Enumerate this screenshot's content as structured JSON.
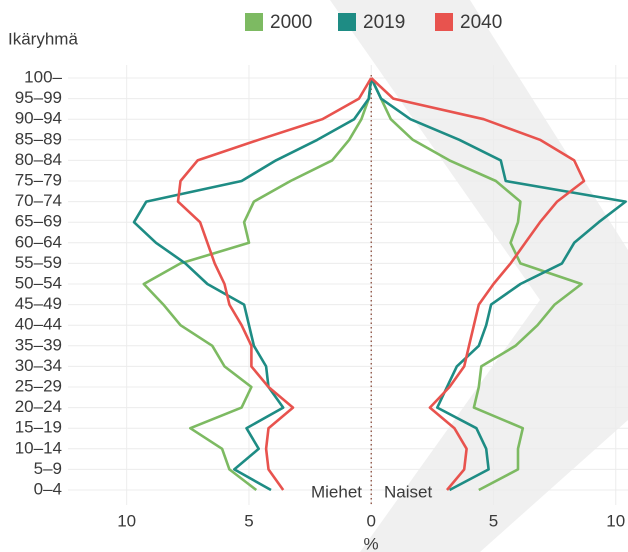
{
  "chart_data": {
    "type": "line",
    "y_axis_title": "Ikäryhmä",
    "x_axis_title": "%",
    "annotations": [
      "Miehet",
      "Naiset"
    ],
    "categories": [
      "0–4",
      "5–9",
      "10–14",
      "15–19",
      "20–24",
      "25–29",
      "30–34",
      "35–39",
      "40–44",
      "45–49",
      "50–54",
      "55–59",
      "60–64",
      "65–69",
      "70–74",
      "75–79",
      "80–84",
      "85–89",
      "90–94",
      "95–99",
      "100–"
    ],
    "series": [
      {
        "name": "2000",
        "color": "#7dba62",
        "men": [
          -4.7,
          -5.8,
          -6.1,
          -7.4,
          -5.3,
          -4.9,
          -6.0,
          -6.5,
          -7.8,
          -8.5,
          -9.3,
          -7.8,
          -5.0,
          -5.2,
          -4.8,
          -3.3,
          -1.6,
          -0.9,
          -0.4,
          -0.1,
          0
        ],
        "women": [
          4.4,
          6.0,
          6.0,
          6.2,
          4.2,
          4.4,
          4.5,
          5.9,
          6.8,
          7.5,
          8.6,
          6.1,
          5.7,
          6.0,
          6.1,
          5.1,
          3.2,
          1.7,
          0.8,
          0.4,
          0
        ]
      },
      {
        "name": "2019",
        "color": "#1e8c84",
        "men": [
          -4.1,
          -5.6,
          -4.6,
          -5.1,
          -3.6,
          -4.2,
          -4.3,
          -4.8,
          -5.0,
          -5.2,
          -6.7,
          -7.6,
          -8.8,
          -9.7,
          -9.2,
          -5.3,
          -3.9,
          -2.2,
          -0.7,
          -0.1,
          0
        ],
        "women": [
          3.2,
          4.8,
          4.7,
          4.3,
          2.7,
          3.1,
          3.5,
          4.4,
          4.7,
          4.9,
          6.1,
          7.8,
          8.3,
          9.3,
          10.4,
          5.5,
          5.3,
          3.6,
          1.6,
          0.4,
          0
        ]
      },
      {
        "name": "2040",
        "color": "#e8534e",
        "men": [
          -3.6,
          -4.2,
          -4.3,
          -4.2,
          -3.2,
          -4.2,
          -4.9,
          -4.9,
          -5.3,
          -5.8,
          -6.0,
          -6.4,
          -6.7,
          -7.0,
          -7.9,
          -7.8,
          -7.1,
          -4.6,
          -2.0,
          -0.5,
          0
        ],
        "women": [
          3.1,
          3.8,
          3.9,
          3.4,
          2.4,
          3.2,
          3.8,
          4.0,
          4.2,
          4.4,
          5.0,
          5.7,
          6.3,
          6.9,
          7.6,
          8.7,
          8.3,
          6.9,
          4.6,
          0.9,
          0
        ]
      }
    ],
    "xlim": [
      -12.4,
      10.5
    ],
    "xticks": [
      {
        "value": -10,
        "label": "10"
      },
      {
        "value": -5,
        "label": "5"
      },
      0,
      5,
      10
    ],
    "grid": true
  }
}
